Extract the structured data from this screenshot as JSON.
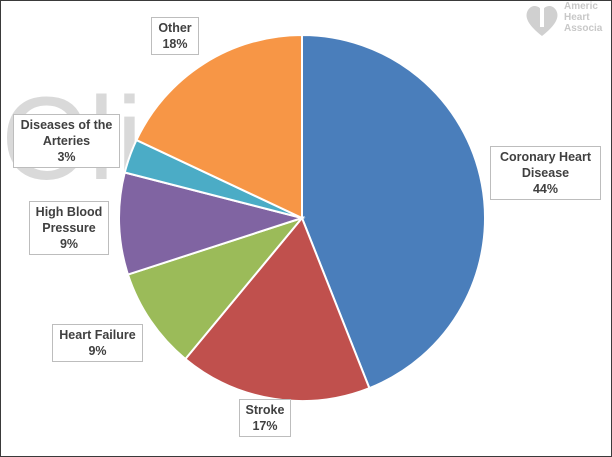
{
  "watermark": "Cli ion",
  "logo": {
    "text": "American Heart Association",
    "icon": "heart-torch-icon"
  },
  "chart_data": {
    "type": "pie",
    "title": "",
    "slices": [
      {
        "name": "Coronary Heart Disease",
        "value": 44,
        "display": "44%",
        "color": "#4a7ebb"
      },
      {
        "name": "Stroke",
        "value": 17,
        "display": "17%",
        "color": "#c0504d"
      },
      {
        "name": "Heart Failure",
        "value": 9,
        "display": "9%",
        "color": "#9bbb59"
      },
      {
        "name": "High Blood Pressure",
        "value": 9,
        "display": "9%",
        "color": "#8064a2"
      },
      {
        "name": "Diseases of the Arteries",
        "value": 3,
        "display": "3%",
        "color": "#4bacc6"
      },
      {
        "name": "Other",
        "value": 18,
        "display": "18%",
        "color": "#f79646"
      }
    ]
  }
}
